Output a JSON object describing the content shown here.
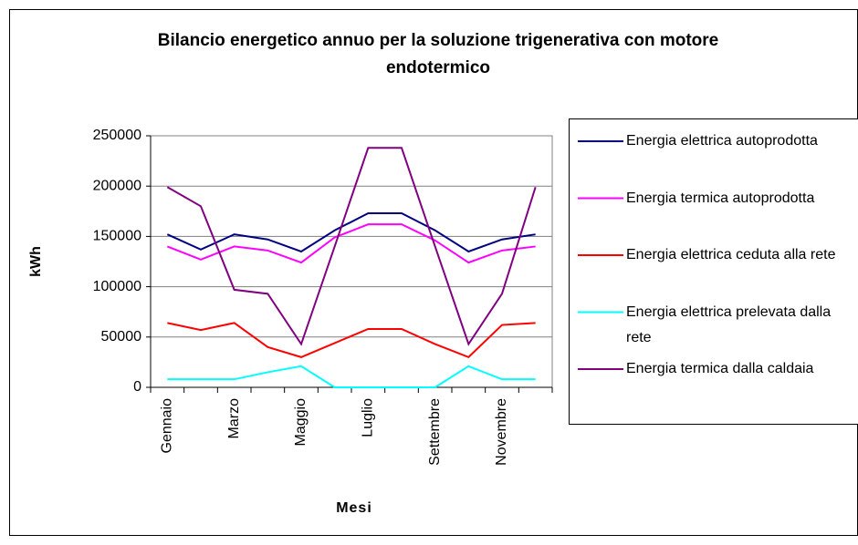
{
  "chart_data": {
    "type": "line",
    "title": "Bilancio energetico annuo per la soluzione trigenerativa con motore endotermico",
    "y_label": "kWh",
    "x_label": "Mesi",
    "categories": [
      "Gennaio",
      null,
      "Marzo",
      null,
      "Maggio",
      null,
      "Luglio",
      null,
      "Settembre",
      null,
      "Novembre",
      null
    ],
    "series": [
      {
        "name": "Energia elettrica autoprodotta",
        "color": "#000080",
        "values": [
          152000,
          137000,
          152000,
          147000,
          135000,
          156000,
          173000,
          173000,
          156000,
          135000,
          147000,
          152000
        ]
      },
      {
        "name": "Energia termica autoprodotta",
        "color": "#ff00ff",
        "values": [
          140000,
          127000,
          140000,
          136000,
          124000,
          149000,
          162000,
          162000,
          146000,
          124000,
          136000,
          140000
        ]
      },
      {
        "name": "Energia elettrica ceduta alla rete",
        "color": "#ff0000",
        "values": [
          64000,
          57000,
          64000,
          40000,
          30000,
          44000,
          58000,
          58000,
          43000,
          30000,
          62000,
          64000
        ]
      },
      {
        "name": "Energia elettrica prelevata dalla rete",
        "color": "#00ffff",
        "values": [
          8000,
          8000,
          8000,
          15000,
          21000,
          0,
          0,
          0,
          0,
          21000,
          8000,
          8000
        ]
      },
      {
        "name": "Energia termica dalla caldaia",
        "color": "#800080",
        "values": [
          199000,
          180000,
          97000,
          93000,
          43000,
          140000,
          238000,
          238000,
          140000,
          43000,
          93000,
          199000
        ]
      }
    ],
    "ylim": [
      0,
      250000
    ],
    "yticks": [
      0,
      50000,
      100000,
      150000,
      200000,
      250000
    ],
    "grid": true
  }
}
